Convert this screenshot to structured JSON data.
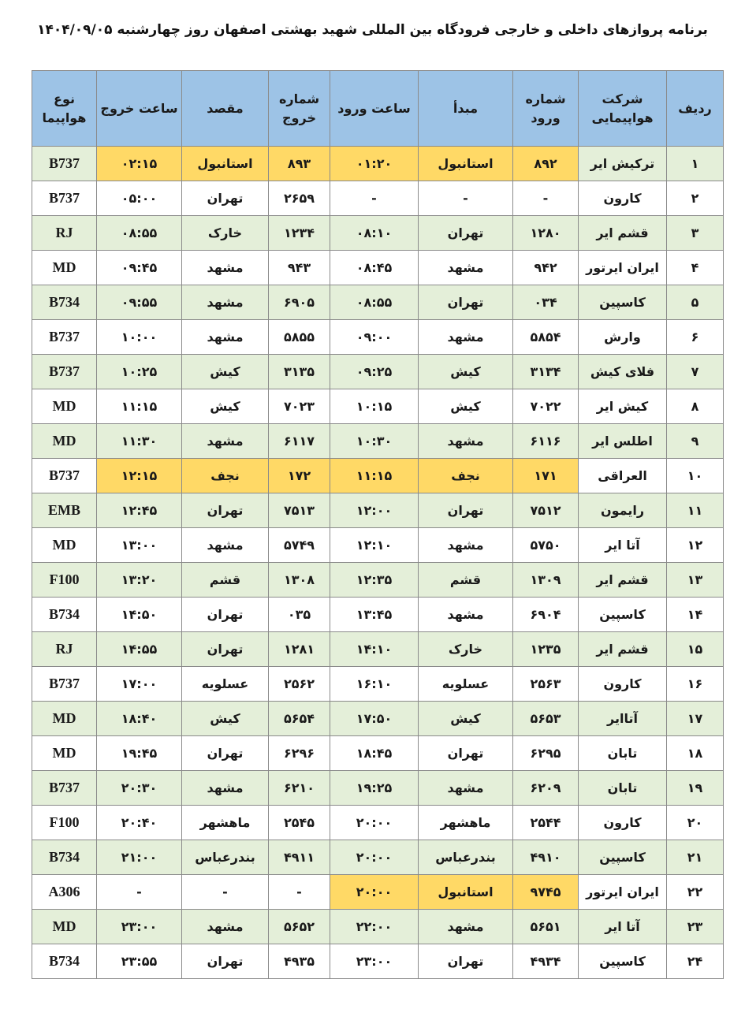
{
  "header": {
    "title": "برنامه پروازهای داخلی و خارجی فرودگاه بین المللی شهید بهشتی اصفهان روز چهارشنبه ۱۴۰۴/۰۹/۰۵"
  },
  "table": {
    "columns": [
      "ردیف",
      "شرکت هواپیمایی",
      "شماره ورود",
      "مبدأ",
      "ساعت ورود",
      "شماره خروج",
      "مقصد",
      "ساعت خروج",
      "نوع هواپیما"
    ],
    "header_color": "#9dc3e6",
    "row_colors": [
      "#e4efd9",
      "#ffffff"
    ],
    "highlight_color": "#ffd966",
    "rows": [
      [
        "۱",
        "ترکیش ایر",
        "۸۹۲",
        "استانبول",
        "۰۱:۲۰",
        "۸۹۳",
        "استانبول",
        "۰۲:۱۵",
        "B737"
      ],
      [
        "۲",
        "کارون",
        "-",
        "-",
        "-",
        "۲۶۵۹",
        "تهران",
        "۰۵:۰۰",
        "B737"
      ],
      [
        "۳",
        "قشم ایر",
        "۱۲۸۰",
        "تهران",
        "۰۸:۱۰",
        "۱۲۳۴",
        "خارک",
        "۰۸:۵۵",
        "RJ"
      ],
      [
        "۴",
        "ایران ایرتور",
        "۹۴۲",
        "مشهد",
        "۰۸:۴۵",
        "۹۴۳",
        "مشهد",
        "۰۹:۴۵",
        "MD"
      ],
      [
        "۵",
        "کاسپین",
        "۰۳۴",
        "تهران",
        "۰۸:۵۵",
        "۶۹۰۵",
        "مشهد",
        "۰۹:۵۵",
        "B734"
      ],
      [
        "۶",
        "وارش",
        "۵۸۵۴",
        "مشهد",
        "۰۹:۰۰",
        "۵۸۵۵",
        "مشهد",
        "۱۰:۰۰",
        "B737"
      ],
      [
        "۷",
        "فلای کیش",
        "۳۱۳۴",
        "کیش",
        "۰۹:۲۵",
        "۳۱۳۵",
        "کیش",
        "۱۰:۲۵",
        "B737"
      ],
      [
        "۸",
        "کیش ایر",
        "۷۰۲۲",
        "کیش",
        "۱۰:۱۵",
        "۷۰۲۳",
        "کیش",
        "۱۱:۱۵",
        "MD"
      ],
      [
        "۹",
        "اطلس ایر",
        "۶۱۱۶",
        "مشهد",
        "۱۰:۳۰",
        "۶۱۱۷",
        "مشهد",
        "۱۱:۳۰",
        "MD"
      ],
      [
        "۱۰",
        "العراقی",
        "۱۷۱",
        "نجف",
        "۱۱:۱۵",
        "۱۷۲",
        "نجف",
        "۱۲:۱۵",
        "B737"
      ],
      [
        "۱۱",
        "رایمون",
        "۷۵۱۲",
        "تهران",
        "۱۲:۰۰",
        "۷۵۱۳",
        "تهران",
        "۱۲:۴۵",
        "EMB"
      ],
      [
        "۱۲",
        "آتا ایر",
        "۵۷۵۰",
        "مشهد",
        "۱۲:۱۰",
        "۵۷۴۹",
        "مشهد",
        "۱۳:۰۰",
        "MD"
      ],
      [
        "۱۳",
        "قشم ایر",
        "۱۳۰۹",
        "قشم",
        "۱۲:۳۵",
        "۱۳۰۸",
        "قشم",
        "۱۳:۲۰",
        "F100"
      ],
      [
        "۱۴",
        "کاسپین",
        "۶۹۰۴",
        "مشهد",
        "۱۳:۴۵",
        "۰۳۵",
        "تهران",
        "۱۴:۵۰",
        "B734"
      ],
      [
        "۱۵",
        "قشم ایر",
        "۱۲۳۵",
        "خارک",
        "۱۴:۱۰",
        "۱۲۸۱",
        "تهران",
        "۱۴:۵۵",
        "RJ"
      ],
      [
        "۱۶",
        "کارون",
        "۲۵۶۳",
        "عسلویه",
        "۱۶:۱۰",
        "۲۵۶۲",
        "عسلویه",
        "۱۷:۰۰",
        "B737"
      ],
      [
        "۱۷",
        "آتاایر",
        "۵۶۵۳",
        "کیش",
        "۱۷:۵۰",
        "۵۶۵۴",
        "کیش",
        "۱۸:۴۰",
        "MD"
      ],
      [
        "۱۸",
        "تابان",
        "۶۲۹۵",
        "تهران",
        "۱۸:۴۵",
        "۶۲۹۶",
        "تهران",
        "۱۹:۴۵",
        "MD"
      ],
      [
        "۱۹",
        "تابان",
        "۶۲۰۹",
        "مشهد",
        "۱۹:۲۵",
        "۶۲۱۰",
        "مشهد",
        "۲۰:۳۰",
        "B737"
      ],
      [
        "۲۰",
        "کارون",
        "۲۵۴۴",
        "ماهشهر",
        "۲۰:۰۰",
        "۲۵۴۵",
        "ماهشهر",
        "۲۰:۴۰",
        "F100"
      ],
      [
        "۲۱",
        "کاسپین",
        "۴۹۱۰",
        "بندرعباس",
        "۲۰:۰۰",
        "۴۹۱۱",
        "بندرعباس",
        "۲۱:۰۰",
        "B734"
      ],
      [
        "۲۲",
        "ایران ایرتور",
        "۹۷۴۵",
        "استانبول",
        "۲۰:۰۰",
        "-",
        "-",
        "-",
        "A306"
      ],
      [
        "۲۳",
        "آتا ایر",
        "۵۶۵۱",
        "مشهد",
        "۲۲:۰۰",
        "۵۶۵۲",
        "مشهد",
        "۲۳:۰۰",
        "MD"
      ],
      [
        "۲۴",
        "کاسپین",
        "۴۹۳۴",
        "تهران",
        "۲۳:۰۰",
        "۴۹۳۵",
        "تهران",
        "۲۳:۵۵",
        "B734"
      ]
    ],
    "highlighted_cells": {
      "0": [
        2,
        3,
        4,
        5,
        6,
        7
      ],
      "9": [
        2,
        3,
        4,
        5,
        6,
        7
      ],
      "21": [
        2,
        3,
        4
      ]
    }
  }
}
